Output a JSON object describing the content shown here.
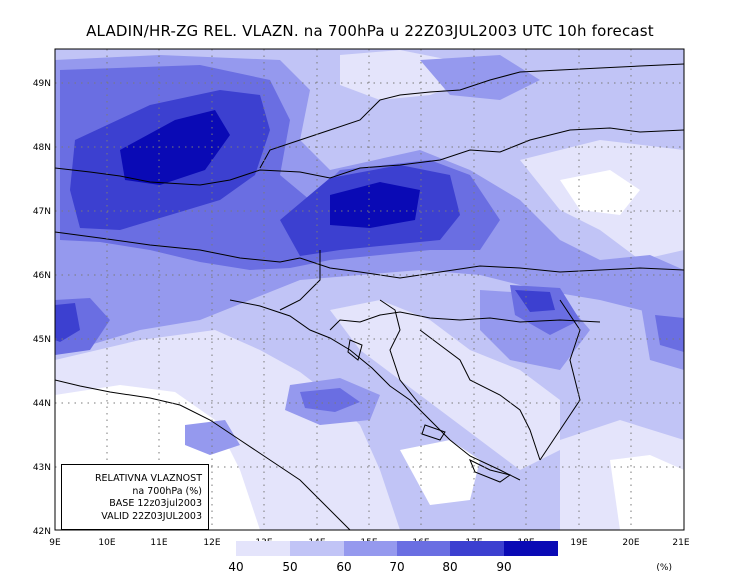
{
  "title": "ALADIN/HR-ZG REL. VLAZN. na 700hPa u 22Z03JUL2003 UTC 10h forecast",
  "lat_labels": [
    "49N",
    "48N",
    "47N",
    "46N",
    "45N",
    "44N",
    "43N",
    "42N"
  ],
  "lon_labels": [
    "9E",
    "10E",
    "11E",
    "12E",
    "13E",
    "14E",
    "15E",
    "16E",
    "17E",
    "18E",
    "19E",
    "20E",
    "21E"
  ],
  "legend": {
    "levels": [
      "40",
      "50",
      "60",
      "70",
      "80",
      "90"
    ],
    "unit": "(%)",
    "colors": [
      "#ffffff",
      "#e4e4fb",
      "#c1c4f6",
      "#9599ee",
      "#6a6ee2",
      "#3c40d0",
      "#0a0ab5"
    ]
  },
  "info": {
    "line1": "RELATIVNA VLAZNOST",
    "line2": "na 700hPa (%)",
    "line3": "BASE 12z03jul2003",
    "line4": "VALID 22Z03JUL2003"
  },
  "extent": {
    "lon_min": 9,
    "lon_max": 21,
    "lat_min": 42,
    "lat_max": 49.5
  }
}
